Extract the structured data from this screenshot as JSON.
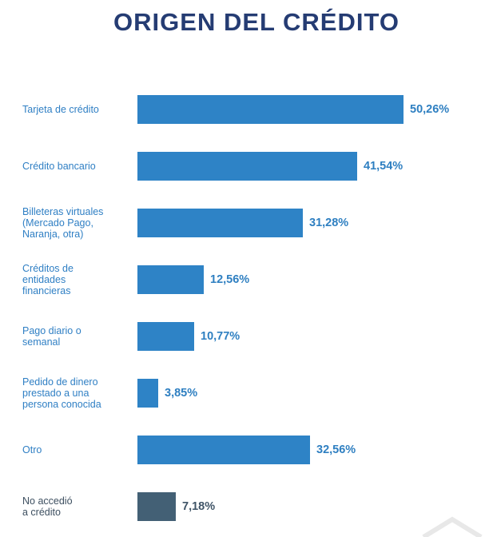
{
  "chart_data": {
    "type": "bar",
    "orientation": "horizontal",
    "title": "ORIGEN DEL CRÉDITO",
    "categories": [
      "Tarjeta de crédito",
      "Crédito bancario",
      "Billeteras virtuales\n(Mercado Pago,\nNaranja, otra)",
      "Créditos de\nentidades\nfinancieras",
      "Pago diario o\nsemanal",
      "Pedido de dinero\nprestado a una\npersona conocida",
      "Otro",
      "No accedió\na crédito"
    ],
    "values": [
      50.26,
      41.54,
      31.28,
      12.56,
      10.77,
      3.85,
      32.56,
      7.18
    ],
    "value_labels": [
      "50,26%",
      "41,54%",
      "31,28%",
      "12,56%",
      "10,77%",
      "3,85%",
      "32,56%",
      "7,18%"
    ],
    "highlight": [
      false,
      false,
      false,
      false,
      false,
      false,
      false,
      true
    ],
    "xlabel": "",
    "ylabel": "",
    "xlim": [
      0,
      50.26
    ],
    "grid": false,
    "legend": "none",
    "colors": {
      "bar": "#2e83c6",
      "bar_highlight": "#436075",
      "label": "#2f7fc4",
      "label_highlight": "#3d4f60",
      "title": "#253c73"
    }
  }
}
